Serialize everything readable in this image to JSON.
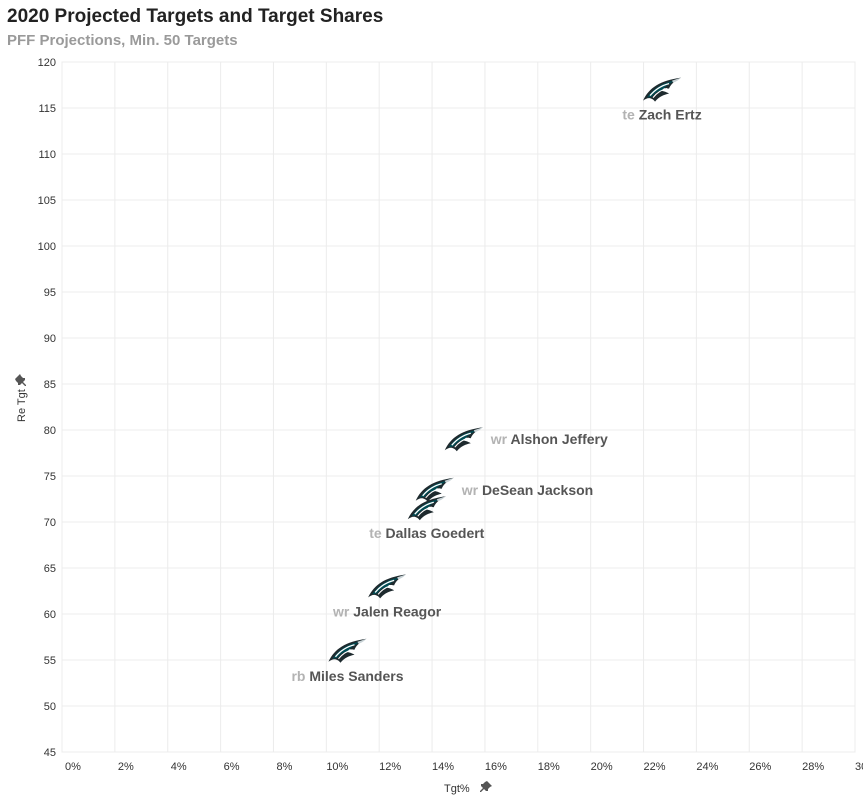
{
  "header": {
    "title": "2020 Projected Targets and Target Shares",
    "subtitle": "PFF Projections, Min. 50 Targets"
  },
  "icons": {
    "marker": "eagle-logo-icon",
    "axis_pin": "pin-icon"
  },
  "colors": {
    "eagle_green": "#004c54",
    "eagle_dark": "#1e2a2e",
    "grid": "#ececec"
  },
  "chart_data": {
    "type": "scatter",
    "title": "2020 Projected Targets and Target Shares",
    "subtitle": "PFF Projections, Min. 50 Targets",
    "xlabel": "Tgt%",
    "ylabel": "Re Tgt",
    "xlim": [
      0,
      30
    ],
    "ylim": [
      45,
      120
    ],
    "x_ticks": [
      "0%",
      "2%",
      "4%",
      "6%",
      "8%",
      "10%",
      "12%",
      "14%",
      "16%",
      "18%",
      "20%",
      "22%",
      "24%",
      "26%",
      "28%",
      "30%"
    ],
    "y_ticks": [
      "45",
      "50",
      "55",
      "60",
      "65",
      "70",
      "75",
      "80",
      "85",
      "90",
      "95",
      "100",
      "105",
      "110",
      "115",
      "120"
    ],
    "grid": true,
    "points": [
      {
        "name": "Zach Ertz",
        "position": "te",
        "x": 22.7,
        "y": 117,
        "label_side": "below"
      },
      {
        "name": "Alshon Jeffery",
        "position": "wr",
        "x": 15.2,
        "y": 79,
        "label_side": "right"
      },
      {
        "name": "DeSean Jackson",
        "position": "wr",
        "x": 14.1,
        "y": 73.5,
        "label_side": "right"
      },
      {
        "name": "Dallas Goedert",
        "position": "te",
        "x": 13.8,
        "y": 71.5,
        "label_side": "below"
      },
      {
        "name": "Jalen Reagor",
        "position": "wr",
        "x": 12.3,
        "y": 63,
        "label_side": "below"
      },
      {
        "name": "Miles Sanders",
        "position": "rb",
        "x": 10.8,
        "y": 56,
        "label_side": "below"
      }
    ]
  }
}
